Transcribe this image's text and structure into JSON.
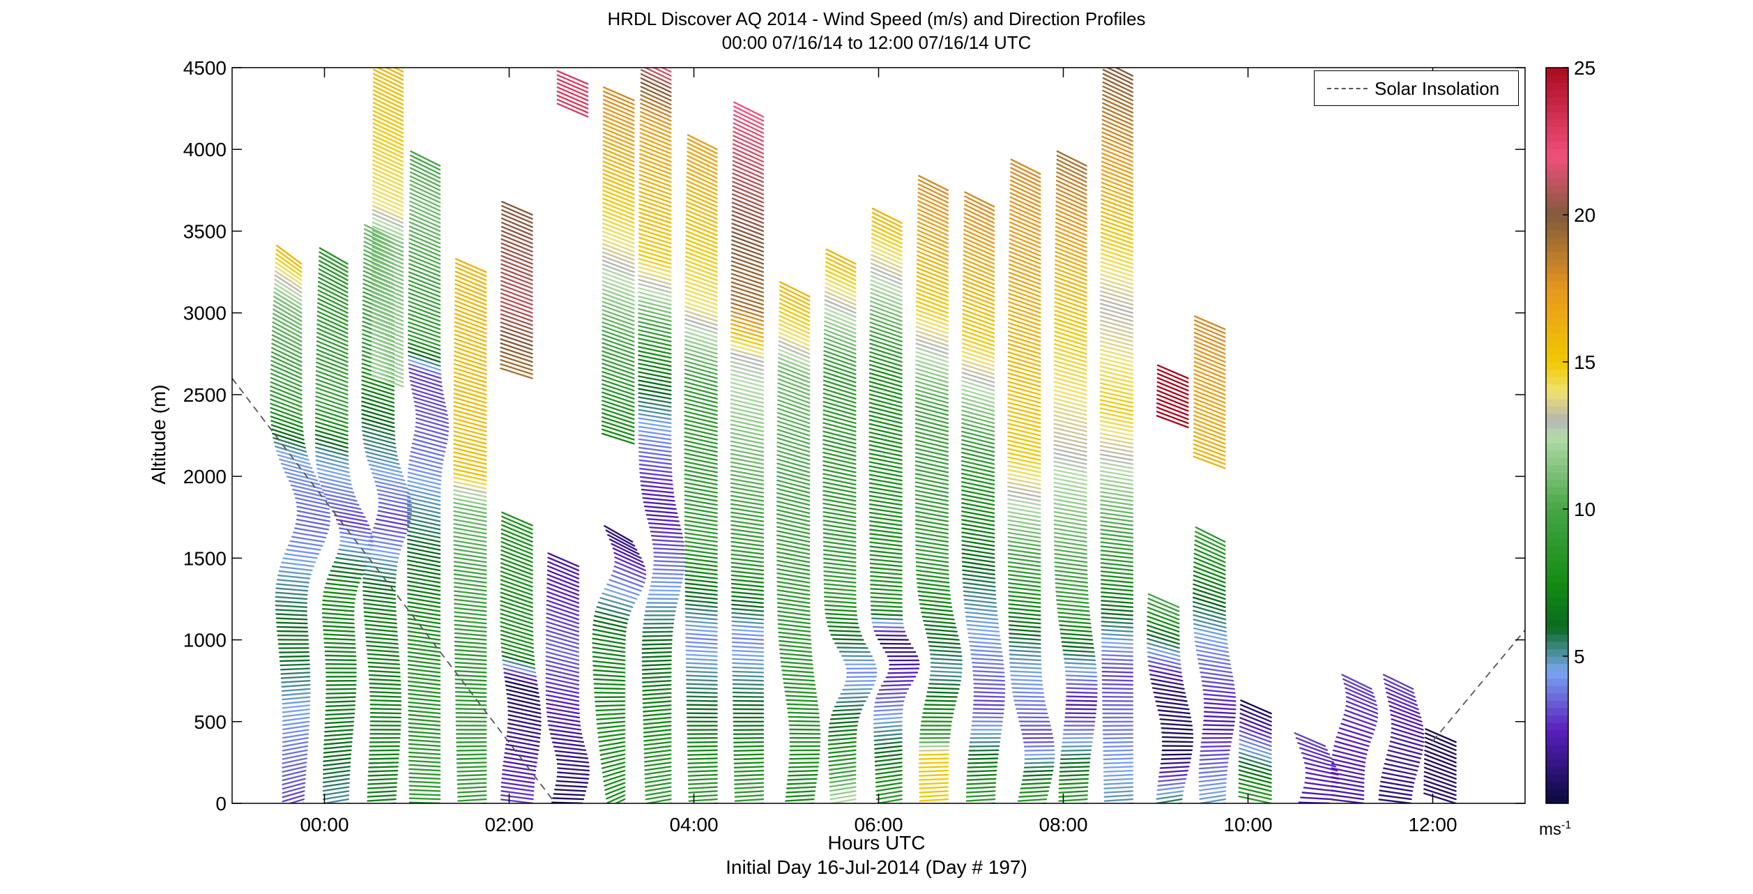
{
  "title_line1": "HRDL Discover AQ 2014 - Wind Speed (m/s) and Direction Profiles",
  "title_line2": "00:00 07/16/14 to 12:00 07/16/14  UTC",
  "xlabel": "Hours UTC",
  "xlabel2": "Initial Day 16-Jul-2014 (Day # 197)",
  "ylabel": "Altitude (m)",
  "colorbar_unit_base": "ms",
  "colorbar_unit_exp": "-1",
  "legend_label": "Solar Insolation",
  "chart_data": {
    "type": "wind-barb-profile",
    "xlim": [
      -1,
      13
    ],
    "ylim": [
      0,
      4500
    ],
    "xticks": [
      {
        "value": 0,
        "label": "00:00"
      },
      {
        "value": 2,
        "label": "02:00"
      },
      {
        "value": 4,
        "label": "04:00"
      },
      {
        "value": 6,
        "label": "06:00"
      },
      {
        "value": 8,
        "label": "08:00"
      },
      {
        "value": 10,
        "label": "10:00"
      },
      {
        "value": 12,
        "label": "12:00"
      }
    ],
    "yticks": [
      0,
      500,
      1000,
      1500,
      2000,
      2500,
      3000,
      3500,
      4000,
      4500
    ],
    "colorbar": {
      "range": [
        0,
        25
      ],
      "ticks": [
        5,
        10,
        15,
        20,
        25
      ],
      "stops": [
        {
          "v": 0,
          "color": "#0a0a3c"
        },
        {
          "v": 2.5,
          "color": "#5a1fbe"
        },
        {
          "v": 4.5,
          "color": "#7aa6f2"
        },
        {
          "v": 6,
          "color": "#0a6a1e"
        },
        {
          "v": 7.5,
          "color": "#148c14"
        },
        {
          "v": 10,
          "color": "#46a546"
        },
        {
          "v": 12.5,
          "color": "#b4dcaa"
        },
        {
          "v": 13,
          "color": "#b4b4b4"
        },
        {
          "v": 14,
          "color": "#f0e16e"
        },
        {
          "v": 15,
          "color": "#f0c800"
        },
        {
          "v": 17.5,
          "color": "#e6961e"
        },
        {
          "v": 20,
          "color": "#825a3c"
        },
        {
          "v": 22,
          "color": "#f0507d"
        },
        {
          "v": 25,
          "color": "#aa0a1e"
        }
      ]
    },
    "solar_insolation": [
      {
        "x": -1,
        "y": 2600
      },
      {
        "x": 2.5,
        "y": 0
      },
      {
        "x": 12.0,
        "y": 380
      },
      {
        "x": 13,
        "y": 1060
      }
    ],
    "profiles": [
      {
        "time": -0.25,
        "bottom": 0,
        "top": 3300,
        "jets": [
          {
            "c": 1750,
            "w": 300,
            "a": 40
          },
          {
            "c": 700,
            "w": 600,
            "a": 12
          }
        ],
        "dir": [
          130,
          220
        ],
        "speeds": [
          [
            0,
            3
          ],
          [
            600,
            4.5
          ],
          [
            1000,
            6.5
          ],
          [
            1700,
            3.5
          ],
          [
            2100,
            4.5
          ],
          [
            2400,
            9
          ],
          [
            3000,
            11
          ],
          [
            3300,
            16
          ]
        ]
      },
      {
        "time": 0.25,
        "bottom": 0,
        "top": 3300,
        "jets": [
          {
            "c": 1600,
            "w": 250,
            "a": 35
          },
          {
            "c": 800,
            "w": 500,
            "a": 12
          }
        ],
        "dir": [
          140,
          210
        ],
        "speeds": [
          [
            0,
            5
          ],
          [
            400,
            6.5
          ],
          [
            1300,
            7.5
          ],
          [
            1700,
            3
          ],
          [
            2100,
            5
          ],
          [
            2400,
            9.5
          ],
          [
            3300,
            8.5
          ]
        ]
      },
      {
        "time": 0.75,
        "bottom": 0,
        "top": 3450,
        "jets": [
          {
            "c": 1800,
            "w": 250,
            "a": 25
          },
          {
            "c": 600,
            "w": 500,
            "a": 10
          }
        ],
        "dir": [
          150,
          205
        ],
        "speeds": [
          [
            0,
            7
          ],
          [
            1200,
            7
          ],
          [
            1700,
            3
          ],
          [
            2300,
            6
          ],
          [
            2800,
            9
          ],
          [
            3450,
            11
          ]
        ]
      },
      {
        "time": 0.85,
        "bottom": 2550,
        "top": 4500,
        "jets": [],
        "dir": [
          195,
          205
        ],
        "speeds": [
          [
            2550,
            12
          ],
          [
            3400,
            11
          ],
          [
            3600,
            14
          ],
          [
            4500,
            16
          ]
        ]
      },
      {
        "time": 1.25,
        "bottom": 0,
        "top": 3900,
        "jets": [
          {
            "c": 2300,
            "w": 200,
            "a": 12
          }
        ],
        "dir": [
          160,
          205
        ],
        "speeds": [
          [
            0,
            9
          ],
          [
            1000,
            8
          ],
          [
            2200,
            3.5
          ],
          [
            2600,
            3
          ],
          [
            2800,
            9
          ],
          [
            3600,
            11
          ],
          [
            3900,
            10
          ]
        ]
      },
      {
        "time": 1.75,
        "bottom": 0,
        "top": 3250,
        "jets": [],
        "dir": [
          150,
          200
        ],
        "speeds": [
          [
            0,
            9
          ],
          [
            800,
            8.5
          ],
          [
            1800,
            11
          ],
          [
            2000,
            15.5
          ],
          [
            3250,
            16
          ]
        ]
      },
      {
        "time": 2.25,
        "bottom": 0,
        "top": 1700,
        "jets": [
          {
            "c": 500,
            "w": 300,
            "a": 12
          }
        ],
        "dir": [
          170,
          200
        ],
        "speeds": [
          [
            0,
            3
          ],
          [
            700,
            0.5
          ],
          [
            900,
            8
          ],
          [
            1700,
            8
          ]
        ]
      },
      {
        "time": 2.25,
        "bottom": 2600,
        "top": 3600,
        "jets": [],
        "dir": [
          190,
          200
        ],
        "speeds": [
          [
            2600,
            19
          ],
          [
            3000,
            21
          ],
          [
            3600,
            20
          ]
        ]
      },
      {
        "time": 2.75,
        "bottom": 0,
        "top": 1450,
        "jets": [
          {
            "c": 200,
            "w": 200,
            "a": 15
          }
        ],
        "dir": [
          160,
          200
        ],
        "speeds": [
          [
            0,
            0.5
          ],
          [
            900,
            3.5
          ],
          [
            1450,
            2
          ]
        ]
      },
      {
        "time": 2.85,
        "bottom": 4200,
        "top": 4400,
        "jets": [],
        "dir": [
          200,
          200
        ],
        "speeds": [
          [
            4200,
            23
          ],
          [
            4400,
            23
          ]
        ]
      },
      {
        "time": 3.25,
        "bottom": 0,
        "top": 1600,
        "jets": [
          {
            "c": 1400,
            "w": 200,
            "a": 30
          }
        ],
        "dir": [
          120,
          210
        ],
        "speeds": [
          [
            0,
            8
          ],
          [
            1000,
            7
          ],
          [
            1400,
            3
          ],
          [
            1600,
            1
          ]
        ]
      },
      {
        "time": 3.35,
        "bottom": 2200,
        "top": 4300,
        "jets": [],
        "dir": [
          190,
          200
        ],
        "speeds": [
          [
            2200,
            7.5
          ],
          [
            2800,
            10
          ],
          [
            3400,
            14
          ],
          [
            4300,
            18
          ]
        ]
      },
      {
        "time": 3.75,
        "bottom": 0,
        "top": 4500,
        "jets": [
          {
            "c": 1500,
            "w": 300,
            "a": 20
          }
        ],
        "dir": [
          140,
          205
        ],
        "speeds": [
          [
            0,
            9
          ],
          [
            1000,
            6
          ],
          [
            1800,
            2
          ],
          [
            2300,
            4.5
          ],
          [
            2700,
            7.5
          ],
          [
            3300,
            15
          ],
          [
            4100,
            17
          ],
          [
            4500,
            22
          ]
        ]
      },
      {
        "time": 4.25,
        "bottom": 0,
        "top": 4000,
        "jets": [],
        "dir": [
          150,
          205
        ],
        "speeds": [
          [
            0,
            9
          ],
          [
            1000,
            4
          ],
          [
            1600,
            9
          ],
          [
            2500,
            9
          ],
          [
            3000,
            14
          ],
          [
            4000,
            17
          ]
        ]
      },
      {
        "time": 4.75,
        "bottom": 0,
        "top": 4200,
        "jets": [],
        "dir": [
          150,
          205
        ],
        "speeds": [
          [
            0,
            9
          ],
          [
            1000,
            4
          ],
          [
            1500,
            9
          ],
          [
            2700,
            13
          ],
          [
            3000,
            19
          ],
          [
            4200,
            22
          ]
        ]
      },
      {
        "time": 5.25,
        "bottom": 0,
        "top": 3100,
        "jets": [
          {
            "c": 400,
            "w": 400,
            "a": 15
          }
        ],
        "dir": [
          150,
          205
        ],
        "speeds": [
          [
            0,
            7.5
          ],
          [
            1200,
            9
          ],
          [
            2600,
            11
          ],
          [
            2800,
            14
          ],
          [
            3100,
            16
          ]
        ]
      },
      {
        "time": 5.75,
        "bottom": 0,
        "top": 3300,
        "jets": [
          {
            "c": 800,
            "w": 200,
            "a": 30
          }
        ],
        "dir": [
          140,
          205
        ],
        "speeds": [
          [
            0,
            13
          ],
          [
            300,
            8
          ],
          [
            800,
            4
          ],
          [
            1300,
            9
          ],
          [
            2600,
            9
          ],
          [
            3300,
            16
          ]
        ]
      },
      {
        "time": 6.25,
        "bottom": 0,
        "top": 3550,
        "jets": [
          {
            "c": 850,
            "w": 150,
            "a": 25
          }
        ],
        "dir": [
          140,
          205
        ],
        "speeds": [
          [
            0,
            9
          ],
          [
            700,
            3
          ],
          [
            1000,
            1
          ],
          [
            1200,
            8
          ],
          [
            2600,
            8
          ],
          [
            3550,
            16
          ]
        ]
      },
      {
        "time": 6.75,
        "bottom": 0,
        "top": 3750,
        "jets": [
          {
            "c": 850,
            "w": 300,
            "a": 20
          }
        ],
        "dir": [
          150,
          205
        ],
        "speeds": [
          [
            0,
            15
          ],
          [
            300,
            15
          ],
          [
            400,
            9
          ],
          [
            800,
            5
          ],
          [
            1500,
            9
          ],
          [
            2400,
            10
          ],
          [
            3000,
            15
          ],
          [
            3750,
            18
          ]
        ]
      },
      {
        "time": 7.25,
        "bottom": 0,
        "top": 3650,
        "jets": [
          {
            "c": 700,
            "w": 400,
            "a": 15
          }
        ],
        "dir": [
          150,
          205
        ],
        "speeds": [
          [
            0,
            9
          ],
          [
            600,
            3
          ],
          [
            1200,
            5
          ],
          [
            2100,
            9
          ],
          [
            2800,
            15
          ],
          [
            3650,
            18
          ]
        ]
      },
      {
        "time": 7.75,
        "bottom": 0,
        "top": 3850,
        "jets": [
          {
            "c": 300,
            "w": 300,
            "a": 20
          }
        ],
        "dir": [
          150,
          205
        ],
        "speeds": [
          [
            0,
            9
          ],
          [
            400,
            3
          ],
          [
            900,
            5
          ],
          [
            1400,
            9
          ],
          [
            2100,
            15
          ],
          [
            2800,
            16
          ],
          [
            3850,
            18
          ]
        ]
      },
      {
        "time": 8.25,
        "bottom": 0,
        "top": 3900,
        "jets": [
          {
            "c": 700,
            "w": 400,
            "a": 15
          }
        ],
        "dir": [
          150,
          205
        ],
        "speeds": [
          [
            0,
            9
          ],
          [
            600,
            2
          ],
          [
            1200,
            9
          ],
          [
            2100,
            13
          ],
          [
            3200,
            16
          ],
          [
            3900,
            19
          ]
        ]
      },
      {
        "time": 8.75,
        "bottom": 0,
        "top": 4450,
        "jets": [],
        "dir": [
          150,
          205
        ],
        "speeds": [
          [
            0,
            5
          ],
          [
            800,
            3
          ],
          [
            1500,
            9
          ],
          [
            2400,
            15
          ],
          [
            3000,
            13
          ],
          [
            4450,
            20
          ]
        ]
      },
      {
        "time": 9.25,
        "bottom": 0,
        "top": 1200,
        "jets": [
          {
            "c": 400,
            "w": 300,
            "a": 20
          }
        ],
        "dir": [
          140,
          200
        ],
        "speeds": [
          [
            0,
            6
          ],
          [
            300,
            0.5
          ],
          [
            700,
            1
          ],
          [
            1200,
            10
          ]
        ]
      },
      {
        "time": 9.35,
        "bottom": 2300,
        "top": 2600,
        "jets": [],
        "dir": [
          195,
          200
        ],
        "speeds": [
          [
            2300,
            25
          ],
          [
            2600,
            25
          ]
        ]
      },
      {
        "time": 9.75,
        "bottom": 0,
        "top": 1600,
        "jets": [
          {
            "c": 600,
            "w": 300,
            "a": 15
          }
        ],
        "dir": [
          140,
          205
        ],
        "speeds": [
          [
            0,
            5
          ],
          [
            500,
            2
          ],
          [
            1000,
            4.5
          ],
          [
            1600,
            9
          ]
        ]
      },
      {
        "time": 9.75,
        "bottom": 2050,
        "top": 2900,
        "jets": [],
        "dir": [
          195,
          200
        ],
        "speeds": [
          [
            2050,
            16
          ],
          [
            2900,
            18
          ]
        ]
      },
      {
        "time": 10.25,
        "bottom": 0,
        "top": 550,
        "jets": [],
        "dir": [
          180,
          200
        ],
        "speeds": [
          [
            0,
            9
          ],
          [
            550,
            0.5
          ]
        ]
      },
      {
        "time": 10.75,
        "bottom": 0,
        "top": 350,
        "jets": [
          {
            "c": 150,
            "w": 200,
            "a": 30
          }
        ],
        "dir": [
          160,
          200
        ],
        "speeds": [
          [
            0,
            2
          ],
          [
            350,
            3
          ]
        ]
      },
      {
        "time": 11.25,
        "bottom": 0,
        "top": 720,
        "jets": [
          {
            "c": 550,
            "w": 200,
            "a": 20
          }
        ],
        "dir": [
          170,
          205
        ],
        "speeds": [
          [
            0,
            2
          ],
          [
            720,
            3
          ]
        ]
      },
      {
        "time": 11.75,
        "bottom": 0,
        "top": 720,
        "jets": [
          {
            "c": 400,
            "w": 250,
            "a": 20
          }
        ],
        "dir": [
          170,
          205
        ],
        "speeds": [
          [
            0,
            1
          ],
          [
            720,
            3
          ]
        ]
      },
      {
        "time": 12.25,
        "bottom": 0,
        "top": 380,
        "jets": [],
        "dir": [
          190,
          200
        ],
        "speeds": [
          [
            0,
            1
          ],
          [
            380,
            0.5
          ]
        ]
      }
    ]
  }
}
